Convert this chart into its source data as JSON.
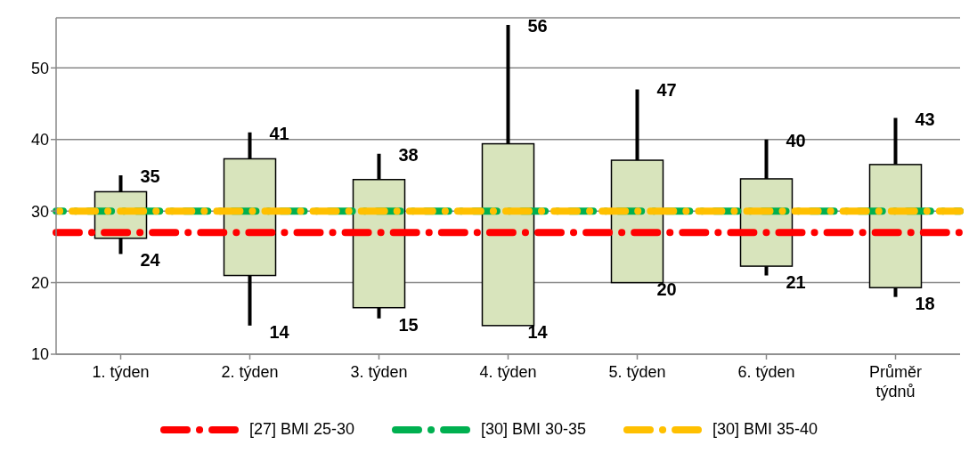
{
  "chart_data": {
    "type": "candlestick",
    "categories": [
      "1. týden",
      "2. týden",
      "3. týden",
      "4. týden",
      "5. týden",
      "6. týden",
      "Průměr týdnů"
    ],
    "ohlc": [
      [
        26.2,
        35,
        24,
        32.7
      ],
      [
        21,
        41,
        14,
        37.3
      ],
      [
        16.5,
        38,
        15,
        34.4
      ],
      [
        14,
        56,
        14,
        39.4
      ],
      [
        20,
        47,
        20,
        37.1
      ],
      [
        22.3,
        40,
        21,
        34.5
      ],
      [
        19.3,
        43,
        18,
        36.5
      ]
    ],
    "color": "#d8e4bc",
    "annotations": [
      {
        "text": "35",
        "x": "1. týden",
        "y": 35
      },
      {
        "text": "24",
        "x": "1. týden",
        "y": 24
      },
      {
        "text": "41",
        "x": "2. týden",
        "y": 41
      },
      {
        "text": "14",
        "x": "2. týden",
        "y": 14
      },
      {
        "text": "38",
        "x": "3. týden",
        "y": 38
      },
      {
        "text": "15",
        "x": "3. týden",
        "y": 15
      },
      {
        "text": "56",
        "x": "4. týden",
        "y": 56
      },
      {
        "text": "14",
        "x": "4. týden",
        "y": 14
      },
      {
        "text": "47",
        "x": "5. týden",
        "y": 47
      },
      {
        "text": "20",
        "x": "5. týden",
        "y": 20
      },
      {
        "text": "40",
        "x": "6. týden",
        "y": 40
      },
      {
        "text": "21",
        "x": "6. týden",
        "y": 21
      },
      {
        "text": "43",
        "x": "Průměr týdnů",
        "y": 43
      },
      {
        "text": "18",
        "x": "Průměr týdnů",
        "y": 18
      }
    ],
    "ylim": [
      10,
      57
    ],
    "yticks": [
      10,
      20,
      30,
      40,
      50
    ],
    "grid": "y",
    "ref_lines": [
      {
        "axis": "y",
        "value": 27,
        "label": "[27] BMI 25-30",
        "color": "#ff0000",
        "line_style": "dashed"
      },
      {
        "axis": "y",
        "value": 30,
        "label": "[30] BMI 30-35",
        "color": "#00b050",
        "line_style": "dashed"
      },
      {
        "axis": "y",
        "value": 30,
        "label": "[30] BMI 35-40",
        "color": "#ffc000",
        "line_style": "dashed"
      }
    ],
    "legend": "bottom"
  }
}
